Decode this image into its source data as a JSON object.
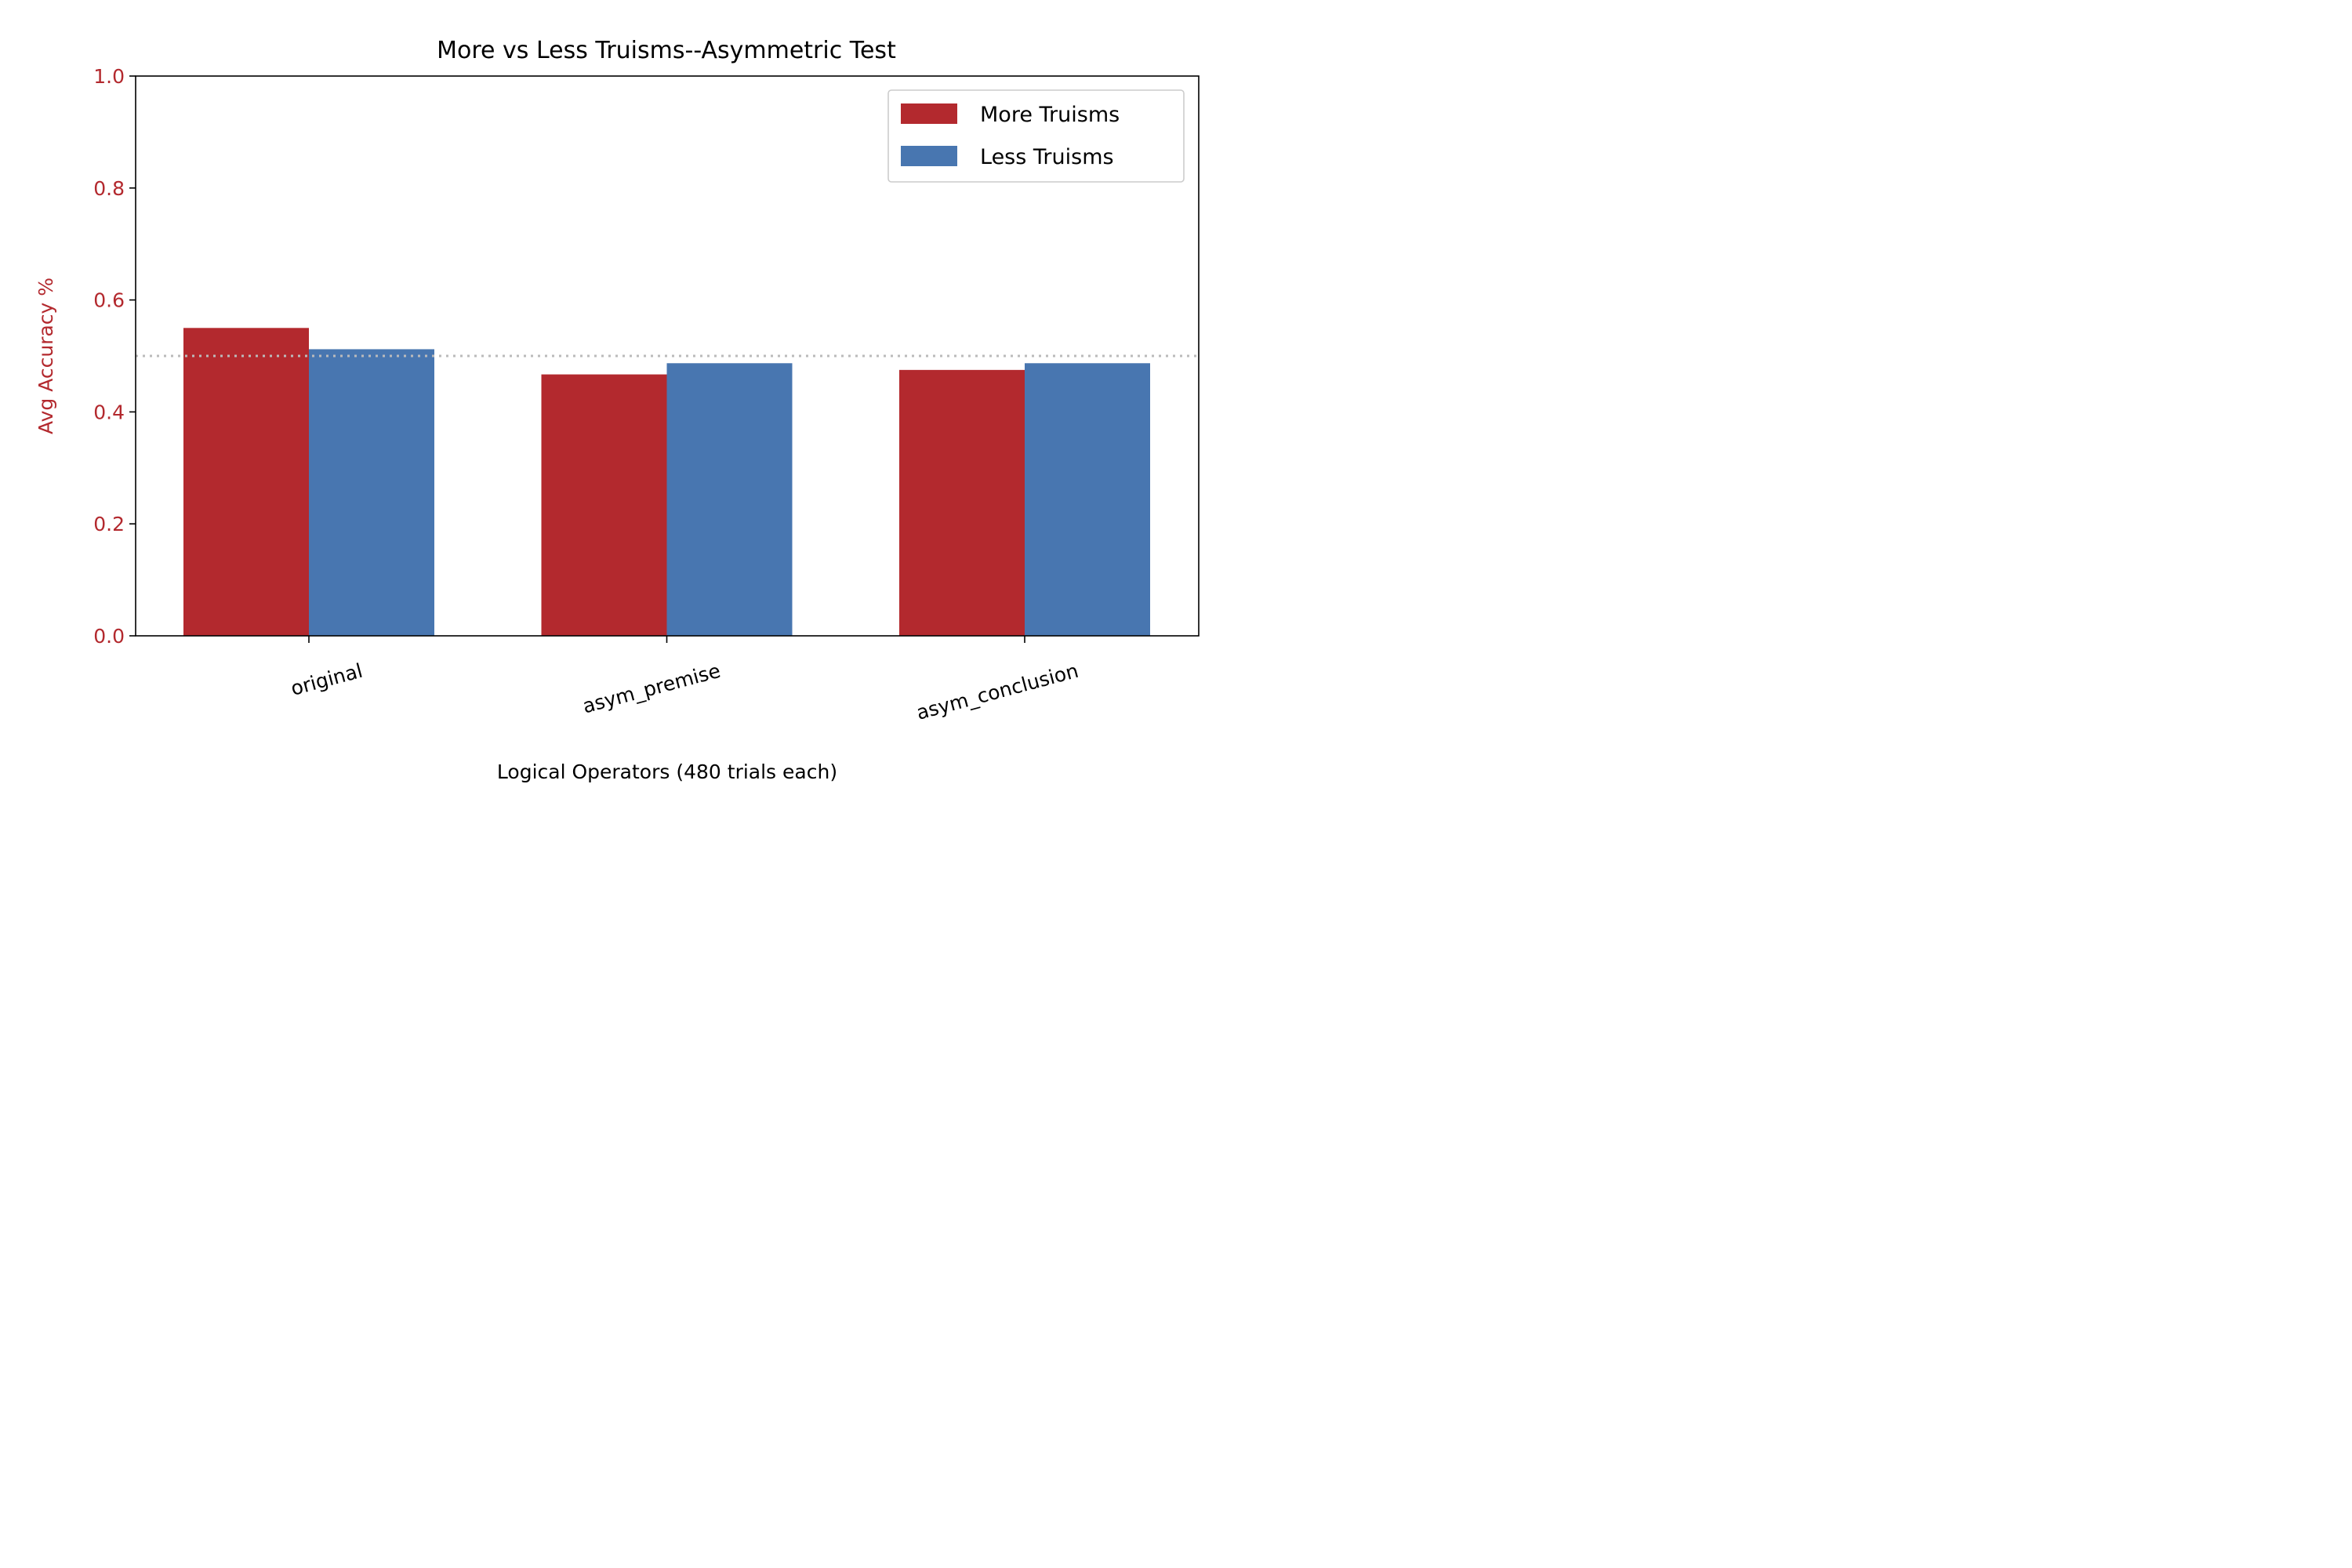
{
  "chart_data": {
    "type": "bar",
    "title": "More vs Less Truisms--Asymmetric Test",
    "xlabel": "Logical Operators (480 trials each)",
    "ylabel": "Avg Accuracy %",
    "ylim": [
      0,
      1.0
    ],
    "yticks": [
      "0.0",
      "0.2",
      "0.4",
      "0.6",
      "0.8",
      "1.0"
    ],
    "categories": [
      "original",
      "asym_premise",
      "asym_conclusion"
    ],
    "series": [
      {
        "name": "More Truisms",
        "color": "#b3292e",
        "values": [
          0.55,
          0.467,
          0.475
        ]
      },
      {
        "name": "Less Truisms",
        "color": "#4876b0",
        "values": [
          0.512,
          0.487,
          0.487
        ]
      }
    ],
    "reference_line": {
      "y": 0.5,
      "style": "dotted",
      "color": "#bbbbbb"
    },
    "ylabel_color": "#b3292e",
    "legend_position": "top-right",
    "grid": false
  }
}
